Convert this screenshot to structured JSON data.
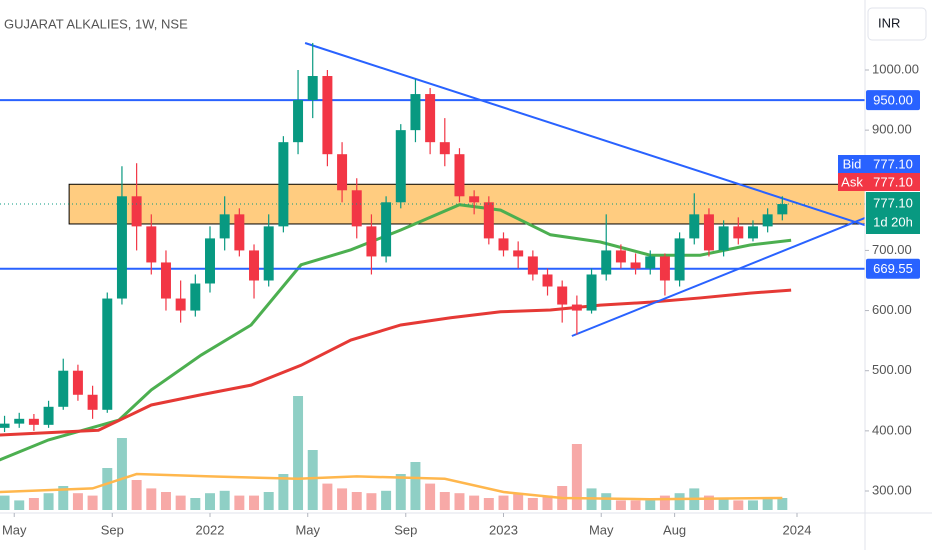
{
  "chart_data": {
    "type": "candlestick",
    "title": "GUJARAT ALKALIES, 1W, NSE",
    "currency": "INR",
    "xlim": [
      2021.2845,
      2024.2317
    ],
    "xticks": [
      {
        "value": 2021.333,
        "label": "May"
      },
      {
        "value": 2021.667,
        "label": "Sep"
      },
      {
        "value": 2022,
        "label": "2022"
      },
      {
        "value": 2022.333,
        "label": "May"
      },
      {
        "value": 2022.667,
        "label": "Sep"
      },
      {
        "value": 2023,
        "label": "2023"
      },
      {
        "value": 2023.333,
        "label": "May"
      },
      {
        "value": 2023.583,
        "label": "Aug"
      },
      {
        "value": 2024,
        "label": "2024"
      }
    ],
    "ylim": [
      263.4,
      1116.4
    ],
    "yticks": [
      {
        "value": 1000,
        "label": "1000.00"
      },
      {
        "value": 900,
        "label": "900.00"
      },
      {
        "value": 700,
        "label": "700.00"
      },
      {
        "value": 600,
        "label": "600.00"
      },
      {
        "value": 500,
        "label": "500.00"
      },
      {
        "value": 400,
        "label": "400.00"
      },
      {
        "value": 300,
        "label": "300.00"
      }
    ],
    "up_color": "#089981",
    "down_color": "#f23645",
    "volume_up_color": "#8fcfc5",
    "volume_down_color": "#f7a9a7",
    "x": [
      2021.3,
      2021.35,
      2021.4,
      2021.45,
      2021.5,
      2021.55,
      2021.6,
      2021.65,
      2021.7,
      2021.75,
      2021.8,
      2021.85,
      2021.9,
      2021.95,
      2022.0,
      2022.05,
      2022.1,
      2022.15,
      2022.2,
      2022.25,
      2022.3,
      2022.35,
      2022.4,
      2022.45,
      2022.5,
      2022.55,
      2022.6,
      2022.65,
      2022.7,
      2022.75,
      2022.8,
      2022.85,
      2022.9,
      2022.95,
      2023.0,
      2023.05,
      2023.1,
      2023.15,
      2023.2,
      2023.25,
      2023.3,
      2023.35,
      2023.4,
      2023.45,
      2023.5,
      2023.55,
      2023.6,
      2023.65,
      2023.7,
      2023.75,
      2023.8,
      2023.85,
      2023.9,
      2023.95
    ],
    "ohlc": [
      [
        405,
        425,
        398,
        412
      ],
      [
        412,
        430,
        405,
        420
      ],
      [
        420,
        428,
        400,
        410
      ],
      [
        410,
        450,
        405,
        440
      ],
      [
        440,
        520,
        435,
        500
      ],
      [
        500,
        510,
        450,
        460
      ],
      [
        460,
        475,
        420,
        435
      ],
      [
        435,
        630,
        430,
        620
      ],
      [
        620,
        840,
        610,
        790
      ],
      [
        790,
        845,
        700,
        740
      ],
      [
        740,
        760,
        660,
        680
      ],
      [
        680,
        700,
        600,
        620
      ],
      [
        620,
        650,
        580,
        600
      ],
      [
        600,
        660,
        590,
        645
      ],
      [
        645,
        740,
        630,
        720
      ],
      [
        720,
        790,
        700,
        760
      ],
      [
        760,
        770,
        690,
        700
      ],
      [
        700,
        710,
        620,
        650
      ],
      [
        650,
        760,
        640,
        740
      ],
      [
        740,
        890,
        730,
        880
      ],
      [
        880,
        1000,
        860,
        950
      ],
      [
        950,
        1045,
        920,
        990
      ],
      [
        990,
        1000,
        840,
        860
      ],
      [
        860,
        880,
        780,
        800
      ],
      [
        800,
        820,
        720,
        740
      ],
      [
        740,
        760,
        660,
        690
      ],
      [
        690,
        790,
        680,
        780
      ],
      [
        780,
        910,
        770,
        900
      ],
      [
        900,
        985,
        880,
        960
      ],
      [
        960,
        970,
        860,
        880
      ],
      [
        880,
        920,
        840,
        860
      ],
      [
        860,
        870,
        780,
        790
      ],
      [
        790,
        800,
        760,
        780
      ],
      [
        780,
        790,
        710,
        720
      ],
      [
        720,
        730,
        690,
        700
      ],
      [
        700,
        715,
        670,
        690
      ],
      [
        690,
        700,
        650,
        660
      ],
      [
        660,
        670,
        625,
        640
      ],
      [
        640,
        650,
        580,
        610
      ],
      [
        610,
        625,
        560,
        600
      ],
      [
        600,
        670,
        595,
        660
      ],
      [
        660,
        760,
        650,
        700
      ],
      [
        700,
        710,
        670,
        680
      ],
      [
        680,
        695,
        660,
        670
      ],
      [
        670,
        700,
        660,
        690
      ],
      [
        690,
        695,
        625,
        650
      ],
      [
        650,
        730,
        640,
        720
      ],
      [
        720,
        795,
        710,
        760
      ],
      [
        760,
        770,
        690,
        700
      ],
      [
        700,
        750,
        690,
        740
      ],
      [
        740,
        755,
        710,
        720
      ],
      [
        720,
        750,
        715,
        740
      ],
      [
        740,
        770,
        730,
        760
      ],
      [
        760,
        790,
        750,
        777.1
      ]
    ],
    "volume_ylim": [
      0,
      100
    ],
    "volume": [
      12,
      8,
      10,
      14,
      20,
      14,
      12,
      35,
      60,
      25,
      18,
      15,
      12,
      10,
      14,
      16,
      12,
      12,
      15,
      30,
      95,
      50,
      22,
      18,
      15,
      14,
      16,
      30,
      40,
      22,
      15,
      14,
      12,
      10,
      12,
      14,
      10,
      12,
      20,
      55,
      18,
      14,
      8,
      8,
      8,
      12,
      14,
      18,
      12,
      10,
      8,
      8,
      10,
      10
    ],
    "lines": [
      {
        "color": "#4caf50",
        "x": [
          2021.28,
          2021.45,
          2021.69,
          2021.8,
          2021.97,
          2022.14,
          2022.31,
          2022.48,
          2022.65,
          2022.85,
          2022.99,
          2023.16,
          2023.33,
          2023.5,
          2023.67,
          2023.84,
          2023.98
        ],
        "values": [
          351,
          385,
          418,
          468,
          526,
          576,
          676,
          701,
          734,
          776,
          767,
          726,
          714,
          692,
          692,
          709,
          717
        ]
      },
      {
        "color": "#e53935",
        "x": [
          2021.28,
          2021.62,
          2021.8,
          2021.97,
          2022.14,
          2022.31,
          2022.48,
          2022.65,
          2022.82,
          2022.99,
          2023.16,
          2023.33,
          2023.5,
          2023.67,
          2023.84,
          2023.98
        ],
        "values": [
          393,
          401,
          443,
          460,
          476,
          509,
          551,
          576,
          588,
          598,
          601,
          609,
          614,
          621,
          629,
          634
        ]
      }
    ],
    "volume_ma": {
      "color": "#ffb74d",
      "x": [
        2021.28,
        2021.6,
        2021.75,
        2022.0,
        2022.3,
        2022.5,
        2022.8,
        2023.0,
        2023.2,
        2023.5,
        2023.95
      ],
      "values": [
        15,
        18,
        30,
        28,
        26,
        28,
        26,
        15,
        10,
        9,
        10
      ]
    },
    "zone": {
      "start": 2021.52,
      "high": 810,
      "low": 744,
      "color": "#ffcc80"
    },
    "trendlines": [
      {
        "color": "#2962ff",
        "points": [
          [
            2022.324,
            1044.9
          ],
          [
            2024.2317,
            742
          ]
        ]
      },
      {
        "color": "#2962ff",
        "points": [
          [
            2023.233,
            557.7
          ],
          [
            2024.2317,
            754
          ]
        ]
      }
    ],
    "levels": [
      {
        "value": 950,
        "label": "950.00"
      },
      {
        "value": 669.55,
        "label": "669.55"
      }
    ],
    "level_color": "#2962ff",
    "bid": {
      "name": "Bid",
      "value": 777.1,
      "label": "777.10",
      "color": "#2962ff"
    },
    "ask": {
      "name": "Ask",
      "value": 777.1,
      "label": "777.10",
      "color": "#f23645"
    },
    "last": {
      "value": 777.1,
      "label": "777.10",
      "countdown": "1d 20h",
      "color": "#089981"
    }
  }
}
